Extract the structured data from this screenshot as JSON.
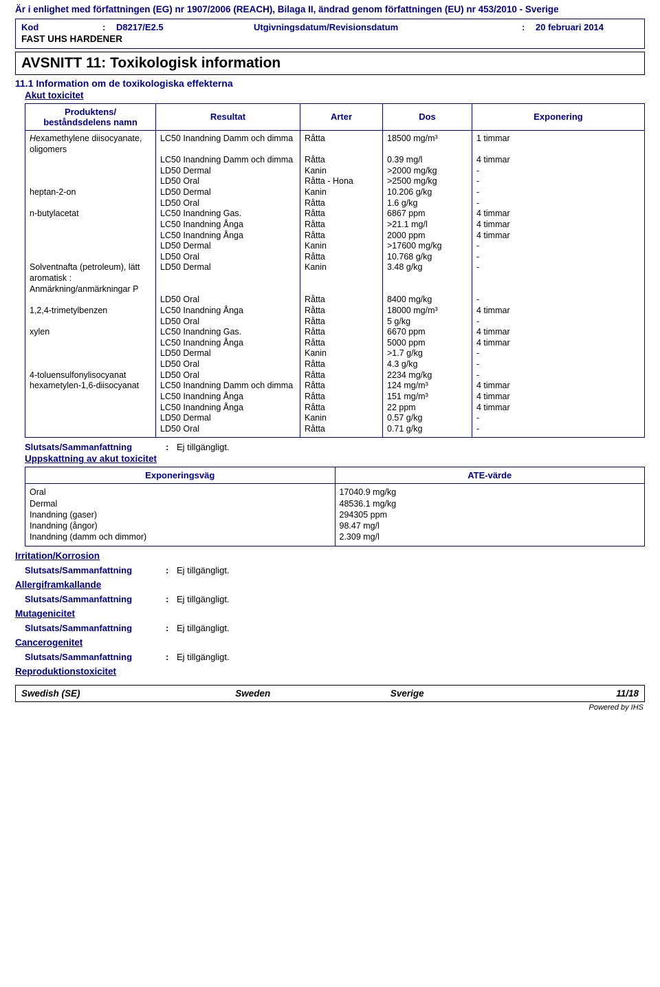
{
  "header": {
    "reach_line": "Är i enlighet med författningen (EG) nr 1907/2006 (REACH), Bilaga II, ändrad genom författningen (EU) nr 453/2010 - Sverige",
    "kod_label": "Kod",
    "kod_value": "D8217/E2.5",
    "utg_label": "Utgivningsdatum/Revisionsdatum",
    "utg_value": "20 februari 2014",
    "product": "FAST UHS HARDENER"
  },
  "section": {
    "title": "AVSNITT 11: Toxikologisk information",
    "sub": "11.1 Information om de toxikologiska effekterna",
    "akut": "Akut toxicitet"
  },
  "tox_table": {
    "headers": {
      "name": "Produktens/\nbeståndsdelens namn",
      "result": "Resultat",
      "species": "Arter",
      "dose": "Dos",
      "exposure": "Exponering"
    },
    "rows": [
      {
        "name": "Hexamethylene diisocyanate, oligomers",
        "result": "LC50 Inandning Damm och dimma",
        "species": "Råtta",
        "dose": "18500 mg/m³",
        "exposure": "1 timmar",
        "arrow": true
      },
      {
        "name": "",
        "result": "LC50 Inandning Damm och dimma",
        "species": "Råtta",
        "dose": "0.39 mg/l",
        "exposure": "4 timmar"
      },
      {
        "name": "",
        "result": "LD50 Dermal",
        "species": "Kanin",
        "dose": ">2000 mg/kg",
        "exposure": "-"
      },
      {
        "name": "",
        "result": "LD50 Oral",
        "species": "Råtta - Hona",
        "dose": ">2500 mg/kg",
        "exposure": "-"
      },
      {
        "name": "heptan-2-on",
        "result": "LD50 Dermal",
        "species": "Kanin",
        "dose": "10.206 g/kg",
        "exposure": "-"
      },
      {
        "name": "",
        "result": "LD50 Oral",
        "species": "Råtta",
        "dose": "1.6 g/kg",
        "exposure": "-"
      },
      {
        "name": "n-butylacetat",
        "result": "LC50 Inandning Gas.",
        "species": "Råtta",
        "dose": "6867 ppm",
        "exposure": "4 timmar"
      },
      {
        "name": "",
        "result": "LC50 Inandning Ånga",
        "species": "Råtta",
        "dose": ">21.1 mg/l",
        "exposure": "4 timmar"
      },
      {
        "name": "",
        "result": "LC50 Inandning Ånga",
        "species": "Råtta",
        "dose": "2000 ppm",
        "exposure": "4 timmar"
      },
      {
        "name": "",
        "result": "LD50 Dermal",
        "species": "Kanin",
        "dose": ">17600 mg/kg",
        "exposure": "-"
      },
      {
        "name": "",
        "result": "LD50 Oral",
        "species": "Råtta",
        "dose": "10.768 g/kg",
        "exposure": "-"
      },
      {
        "name": "Solventnafta (petroleum), lätt aromatisk : Anmärkning/anmärkningar P",
        "result": "LD50 Dermal",
        "species": "Kanin",
        "dose": "3.48 g/kg",
        "exposure": "-"
      },
      {
        "name": "",
        "result": "LD50 Oral",
        "species": "Råtta",
        "dose": "8400 mg/kg",
        "exposure": "-"
      },
      {
        "name": "1,2,4-trimetylbenzen",
        "result": "LC50 Inandning Ånga",
        "species": "Råtta",
        "dose": "18000 mg/m³",
        "exposure": "4 timmar"
      },
      {
        "name": "",
        "result": "LD50 Oral",
        "species": "Råtta",
        "dose": "5 g/kg",
        "exposure": "-"
      },
      {
        "name": "xylen",
        "result": "LC50 Inandning Gas.",
        "species": "Råtta",
        "dose": "6670 ppm",
        "exposure": "4 timmar"
      },
      {
        "name": "",
        "result": "LC50 Inandning Ånga",
        "species": "Råtta",
        "dose": "5000 ppm",
        "exposure": "4 timmar"
      },
      {
        "name": "",
        "result": "LD50 Dermal",
        "species": "Kanin",
        "dose": ">1.7 g/kg",
        "exposure": "-"
      },
      {
        "name": "",
        "result": "LD50 Oral",
        "species": "Råtta",
        "dose": "4.3 g/kg",
        "exposure": "-"
      },
      {
        "name": "4-toluensulfonylisocyanat",
        "result": "LD50 Oral",
        "species": "Råtta",
        "dose": "2234 mg/kg",
        "exposure": "-"
      },
      {
        "name": "hexametylen-1,6-diisocyanat",
        "result": "LC50 Inandning Damm och dimma",
        "species": "Råtta",
        "dose": "124 mg/m³",
        "exposure": "4 timmar"
      },
      {
        "name": "",
        "result": "LC50 Inandning Ånga",
        "species": "Råtta",
        "dose": "151 mg/m³",
        "exposure": "4 timmar"
      },
      {
        "name": "",
        "result": "LC50 Inandning Ånga",
        "species": "Råtta",
        "dose": "22 ppm",
        "exposure": "4 timmar"
      },
      {
        "name": "",
        "result": "LD50 Dermal",
        "species": "Kanin",
        "dose": "0.57 g/kg",
        "exposure": "-"
      },
      {
        "name": "",
        "result": "LD50 Oral",
        "species": "Råtta",
        "dose": "0.71 g/kg",
        "exposure": "-"
      }
    ]
  },
  "conclusion": {
    "label": "Slutsats/Sammanfattning",
    "value": "Ej tillgängligt."
  },
  "ate": {
    "title": "Uppskattning av akut toxicitet",
    "headers": {
      "route": "Exponeringsväg",
      "value": "ATE-värde"
    },
    "rows": [
      {
        "route": "Oral",
        "value": "17040.9 mg/kg"
      },
      {
        "route": "Dermal",
        "value": "48536.1 mg/kg"
      },
      {
        "route": "Inandning (gaser)",
        "value": "294305 ppm"
      },
      {
        "route": "Inandning (ångor)",
        "value": "98.47 mg/l"
      },
      {
        "route": "Inandning (damm och dimmor)",
        "value": "2.309 mg/l"
      }
    ]
  },
  "categories": [
    {
      "title": "Irritation/Korrosion"
    },
    {
      "title": "Allergiframkallande"
    },
    {
      "title": "Mutagenicitet"
    },
    {
      "title": "Cancerogenitet"
    },
    {
      "title": "Reproduktionstoxicitet"
    }
  ],
  "footer": {
    "left": "Swedish (SE)",
    "center": "Sweden",
    "center2": "Sverige",
    "right": "11/18",
    "powered": "Powered by IHS"
  },
  "colors": {
    "brand": "#000096",
    "black": "#000000",
    "bg": "#ffffff"
  }
}
